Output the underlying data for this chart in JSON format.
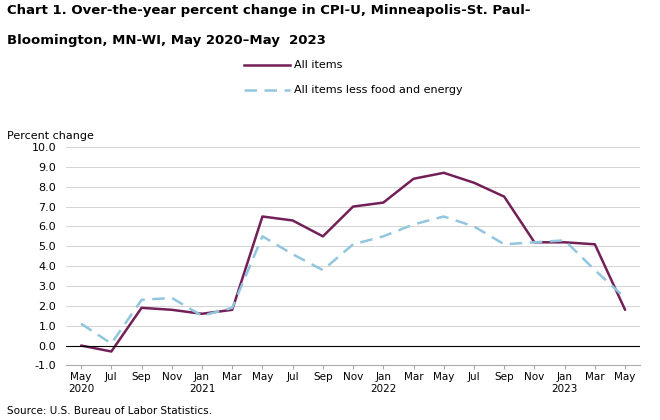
{
  "title_line1": "Chart 1. Over-the-year percent change in CPI-U, Minneapolis-St. Paul-",
  "title_line2": "Bloomington, MN-WI, May 2020–May  2023",
  "ylabel": "Percent change",
  "source": "Source: U.S. Bureau of Labor Statistics.",
  "ylim": [
    -1.0,
    10.0
  ],
  "yticks": [
    -1.0,
    0.0,
    1.0,
    2.0,
    3.0,
    4.0,
    5.0,
    6.0,
    7.0,
    8.0,
    9.0,
    10.0
  ],
  "x_labels": [
    "May\n2020",
    "Jul",
    "Sep",
    "Nov",
    "Jan\n2021",
    "Mar",
    "May",
    "Jul",
    "Sep",
    "Nov",
    "Jan\n2022",
    "Mar",
    "May",
    "Jul",
    "Sep",
    "Nov",
    "Jan\n2023",
    "Mar",
    "May"
  ],
  "all_items": [
    0.0,
    -0.3,
    1.9,
    1.8,
    1.6,
    1.8,
    6.5,
    6.3,
    5.5,
    7.0,
    7.2,
    8.4,
    8.7,
    8.2,
    7.5,
    5.2,
    5.2,
    5.1,
    1.8
  ],
  "all_items_less": [
    1.1,
    0.1,
    2.3,
    2.4,
    1.5,
    1.9,
    5.5,
    4.6,
    3.8,
    5.1,
    5.5,
    6.1,
    6.5,
    6.0,
    5.1,
    5.2,
    5.3,
    3.8,
    2.4
  ],
  "all_items_color": "#722057",
  "all_items_less_color": "#92c5de",
  "line_width": 1.8,
  "legend_all_items": "All items",
  "legend_all_items_less": "All items less food and energy"
}
